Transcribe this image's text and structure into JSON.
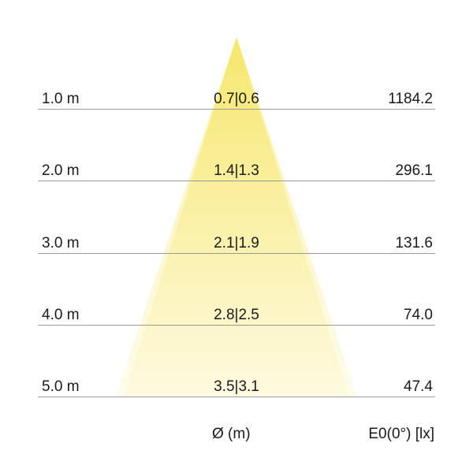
{
  "colors": {
    "beam": "#f5e45a",
    "beam_fade": "#fdf9dc",
    "lines": "#9a9a9a"
  },
  "rows": [
    {
      "distance": "1.0 m",
      "diameter": "0.7|0.6",
      "illuminance": "1184.2"
    },
    {
      "distance": "2.0 m",
      "diameter": "1.4|1.3",
      "illuminance": "296.1"
    },
    {
      "distance": "3.0 m",
      "diameter": "2.1|1.9",
      "illuminance": "131.6"
    },
    {
      "distance": "4.0 m",
      "diameter": "2.8|2.5",
      "illuminance": "74.0"
    },
    {
      "distance": "5.0 m",
      "diameter": "3.5|3.1",
      "illuminance": "47.4"
    }
  ],
  "footer": {
    "diameter_label": "Ø (m)",
    "illuminance_label": "E0(0°) [lx]"
  }
}
